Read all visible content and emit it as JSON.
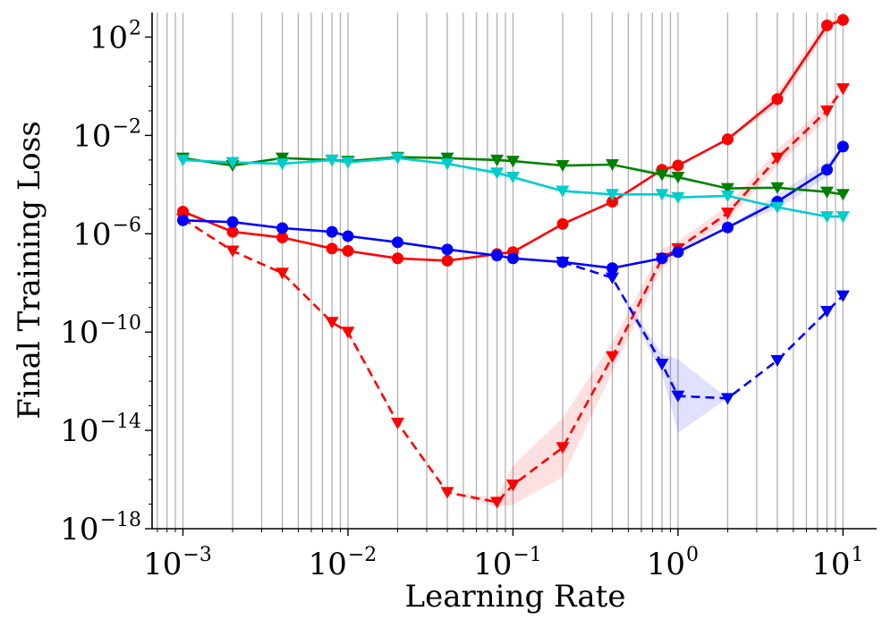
{
  "chart_data": {
    "type": "line",
    "title": "",
    "xlabel": "Learning Rate",
    "ylabel": "Final Training Loss",
    "xscale": "log",
    "yscale": "log",
    "xlim": [
      0.00065,
      16
    ],
    "ylim": [
      1e-18,
      1000
    ],
    "grid": "vertical minor and major x gridlines",
    "x_ticks": [
      {
        "base": "10",
        "exp": "−3",
        "value": 0.001
      },
      {
        "base": "10",
        "exp": "−2",
        "value": 0.01
      },
      {
        "base": "10",
        "exp": "−1",
        "value": 0.1
      },
      {
        "base": "10",
        "exp": "0",
        "value": 1
      },
      {
        "base": "10",
        "exp": "1",
        "value": 10
      }
    ],
    "y_ticks": [
      {
        "base": "10",
        "exp": "−18",
        "value": 1e-18
      },
      {
        "base": "10",
        "exp": "−14",
        "value": 1e-14
      },
      {
        "base": "10",
        "exp": "−10",
        "value": 1e-10
      },
      {
        "base": "10",
        "exp": "−6",
        "value": 1e-06
      },
      {
        "base": "10",
        "exp": "−2",
        "value": 0.01
      },
      {
        "base": "10",
        "exp": "2",
        "value": 100
      }
    ],
    "series": [
      {
        "name": "red-solid-circle",
        "color": "#ff0000",
        "marker": "circle",
        "linestyle": "solid",
        "x": [
          0.001,
          0.002,
          0.004,
          0.008,
          0.01,
          0.02,
          0.04,
          0.08,
          0.1,
          0.2,
          0.4,
          0.8,
          1,
          2,
          4,
          8,
          10
        ],
        "y": [
          8e-06,
          1.2e-06,
          7e-07,
          2.5e-07,
          2e-07,
          1e-07,
          8e-08,
          1.5e-07,
          1.8e-07,
          2.5e-06,
          2e-05,
          0.0004,
          0.0006,
          0.007,
          0.3,
          300.0,
          500.0
        ],
        "band": [
          0,
          0,
          0,
          0,
          0,
          0,
          0,
          0,
          0,
          0,
          0,
          0,
          0,
          0,
          0.3,
          0.25,
          0
        ]
      },
      {
        "name": "red-dashed-triangle",
        "color": "#ff0000",
        "marker": "triangle-down",
        "linestyle": "dashed",
        "x": [
          0.001,
          0.002,
          0.004,
          0.008,
          0.01,
          0.02,
          0.04,
          0.08,
          0.1,
          0.2,
          0.4,
          0.8,
          1,
          2,
          4,
          8,
          10
        ],
        "y": [
          4e-06,
          2e-07,
          2.5e-08,
          2.5e-10,
          1e-10,
          2e-14,
          3e-17,
          1.2e-17,
          6e-17,
          2e-15,
          1e-11,
          1e-07,
          2.5e-07,
          7e-06,
          0.0012,
          0.1,
          0.8
        ],
        "band": [
          0,
          0,
          0,
          0,
          0.15,
          0,
          0,
          0.2,
          0.8,
          1.2,
          0.6,
          0.4,
          0.3,
          0.3,
          0.35,
          0.3,
          0
        ]
      },
      {
        "name": "green-solid-triangle",
        "color": "#008000",
        "marker": "triangle-down",
        "linestyle": "solid",
        "x": [
          0.001,
          0.002,
          0.004,
          0.008,
          0.01,
          0.02,
          0.04,
          0.08,
          0.1,
          0.2,
          0.4,
          0.8,
          1,
          2,
          4,
          8,
          10
        ],
        "y": [
          0.0012,
          0.0006,
          0.0012,
          0.001,
          0.0009,
          0.0013,
          0.0012,
          0.001,
          0.0009,
          0.0006,
          0.00065,
          0.00025,
          0.0002,
          7e-05,
          7.5e-05,
          5e-05,
          4e-05
        ],
        "band": [
          0,
          0,
          0,
          0,
          0,
          0,
          0,
          0,
          0,
          0,
          0,
          0.15,
          0.1,
          0,
          0,
          0,
          0
        ]
      },
      {
        "name": "cyan-solid-triangle",
        "color": "#00cccc",
        "marker": "triangle-down",
        "linestyle": "solid",
        "x": [
          0.001,
          0.002,
          0.004,
          0.008,
          0.01,
          0.02,
          0.04,
          0.08,
          0.1,
          0.2,
          0.4,
          0.8,
          1,
          2,
          4,
          8,
          10
        ],
        "y": [
          0.001,
          0.0008,
          0.0007,
          0.001,
          0.0008,
          0.0012,
          0.0007,
          0.0003,
          0.0002,
          5.5e-05,
          4e-05,
          4e-05,
          3e-05,
          3.5e-05,
          1.2e-05,
          5e-06,
          5e-06
        ],
        "band": [
          0,
          0,
          0,
          0,
          0,
          0,
          0,
          0.15,
          0.1,
          0,
          0,
          0,
          0,
          0,
          0,
          0,
          0
        ]
      },
      {
        "name": "blue-solid-circle",
        "color": "#0000ff",
        "marker": "circle",
        "linestyle": "solid",
        "x": [
          0.001,
          0.002,
          0.004,
          0.008,
          0.01,
          0.02,
          0.04,
          0.08,
          0.1,
          0.2,
          0.4,
          0.8,
          1,
          2,
          4,
          8,
          10
        ],
        "y": [
          3.5e-06,
          3e-06,
          1.7e-06,
          1.2e-06,
          8e-07,
          4.5e-07,
          2.3e-07,
          1.3e-07,
          1e-07,
          7e-08,
          4e-08,
          1e-07,
          1.8e-07,
          1.8e-06,
          2e-05,
          0.0004,
          0.0035
        ],
        "band": [
          0,
          0,
          0,
          0,
          0,
          0,
          0,
          0,
          0,
          0,
          0,
          0,
          0,
          0,
          0.3,
          0.3,
          0
        ]
      },
      {
        "name": "blue-dashed-triangle",
        "color": "#0000ff",
        "marker": "triangle-down",
        "linestyle": "dashed",
        "x": [
          0.2,
          0.4,
          0.8,
          1,
          2,
          4,
          8,
          10
        ],
        "y": [
          7e-08,
          1.6e-08,
          5e-12,
          2.5e-13,
          2e-13,
          7e-12,
          7e-10,
          3e-09
        ],
        "band": [
          0,
          0,
          0.4,
          1.5,
          0,
          0,
          0,
          0
        ]
      }
    ]
  }
}
